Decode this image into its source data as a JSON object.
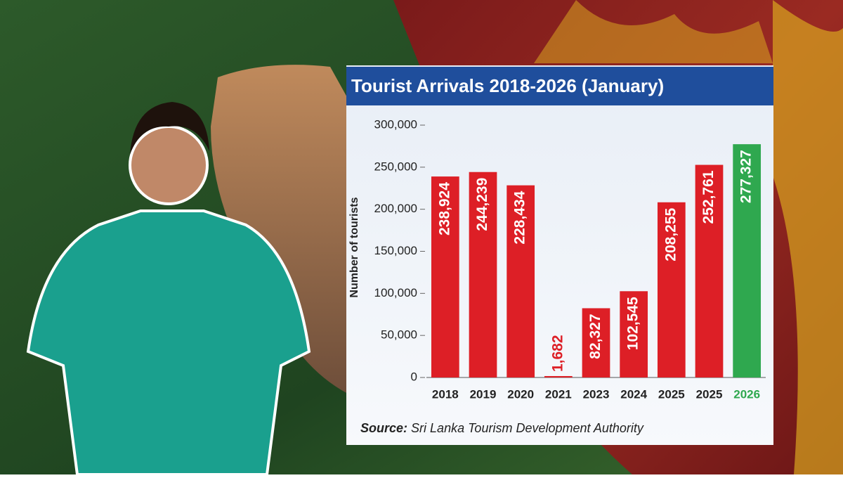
{
  "chart_data": {
    "type": "bar",
    "title": "Tourist Arrivals 2018-2026 (January)",
    "y_label": "Number of tourists",
    "categories": [
      "2018",
      "2019",
      "2020",
      "2021",
      "2023",
      "2024",
      "2025",
      "2025",
      "2026"
    ],
    "values": [
      238924,
      244239,
      228434,
      1682,
      82327,
      102545,
      208255,
      252761,
      277327
    ],
    "value_labels": [
      "238,924",
      "244,239",
      "228,434",
      "1,682",
      "82,327",
      "102,545",
      "208,255",
      "252,761",
      "277,327"
    ],
    "colors": [
      "#dd1f26",
      "#dd1f26",
      "#dd1f26",
      "#dd1f26",
      "#dd1f26",
      "#dd1f26",
      "#dd1f26",
      "#dd1f26",
      "#2fa84f"
    ],
    "ylim": [
      0,
      300000
    ],
    "yticks": [
      0,
      {
        "value": 50000,
        "label": "50,000"
      },
      {
        "value": 100000,
        "label": "100,000"
      },
      {
        "value": 150000,
        "label": "150,000"
      },
      {
        "value": 200000,
        "label": "200,000"
      },
      {
        "value": 250000,
        "label": "250,000"
      },
      {
        "value": 300000,
        "label": "300,000"
      }
    ],
    "grid": false,
    "source_label": "Source:",
    "source": "Sri Lanka Tourism Development Authority"
  }
}
